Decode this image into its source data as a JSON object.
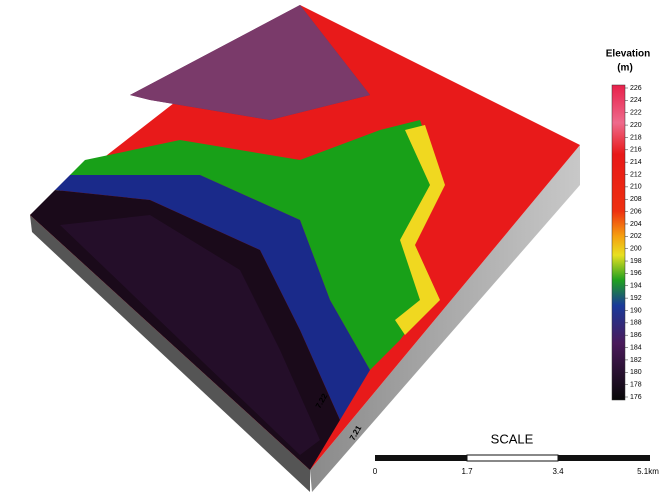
{
  "legend": {
    "title": "Elevation",
    "unit": "(m)",
    "ticks": [
      "226",
      "224",
      "222",
      "220",
      "218",
      "216",
      "214",
      "212",
      "210",
      "208",
      "206",
      "204",
      "202",
      "200",
      "198",
      "196",
      "194",
      "192",
      "190",
      "188",
      "186",
      "184",
      "182",
      "180",
      "178",
      "176"
    ]
  },
  "axis_labels": [
    "7.21",
    "7.22"
  ],
  "scale": {
    "title": "SCALE",
    "labels": [
      "0",
      "1.7",
      "3.4",
      "5.1km"
    ]
  }
}
